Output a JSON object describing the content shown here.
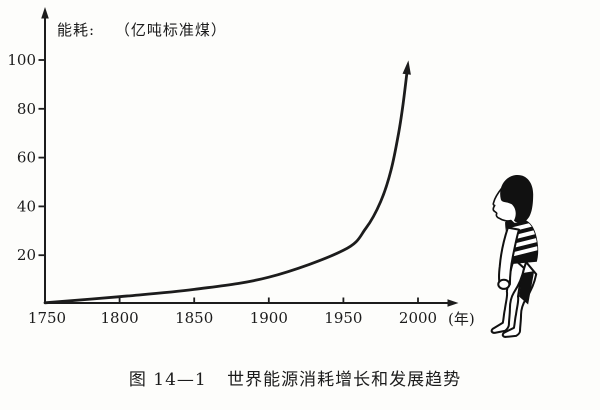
{
  "colors": {
    "ink": "#1c1c1c",
    "paper": "#fdfdfb"
  },
  "chart": {
    "y_axis_title_prefix": "能耗:",
    "y_axis_title_unit": "（亿吨标准煤）",
    "x_axis_unit": "(年)",
    "y_ticks": [
      20,
      40,
      60,
      80,
      100
    ],
    "x_ticks": [
      1750,
      1800,
      1850,
      1900,
      1950,
      2000
    ]
  },
  "caption": {
    "figure_number": "图 14—1",
    "title": "世界能源消耗增长和发展趋势"
  },
  "chart_data": {
    "type": "line",
    "title": "世界能源消耗增长和发展趋势",
    "xlabel": "年",
    "ylabel": "能耗（亿吨标准煤）",
    "x": [
      1750,
      1800,
      1850,
      1900,
      1950,
      1965,
      1975,
      1982,
      1987,
      1990,
      1993
    ],
    "y": [
      0.5,
      3,
      6,
      11,
      22,
      31,
      42,
      55,
      70,
      82,
      97
    ],
    "xlim": [
      1750,
      2010
    ],
    "ylim": [
      0,
      110
    ],
    "grid": false,
    "legend": null,
    "curve_ends_with_arrow": true
  }
}
